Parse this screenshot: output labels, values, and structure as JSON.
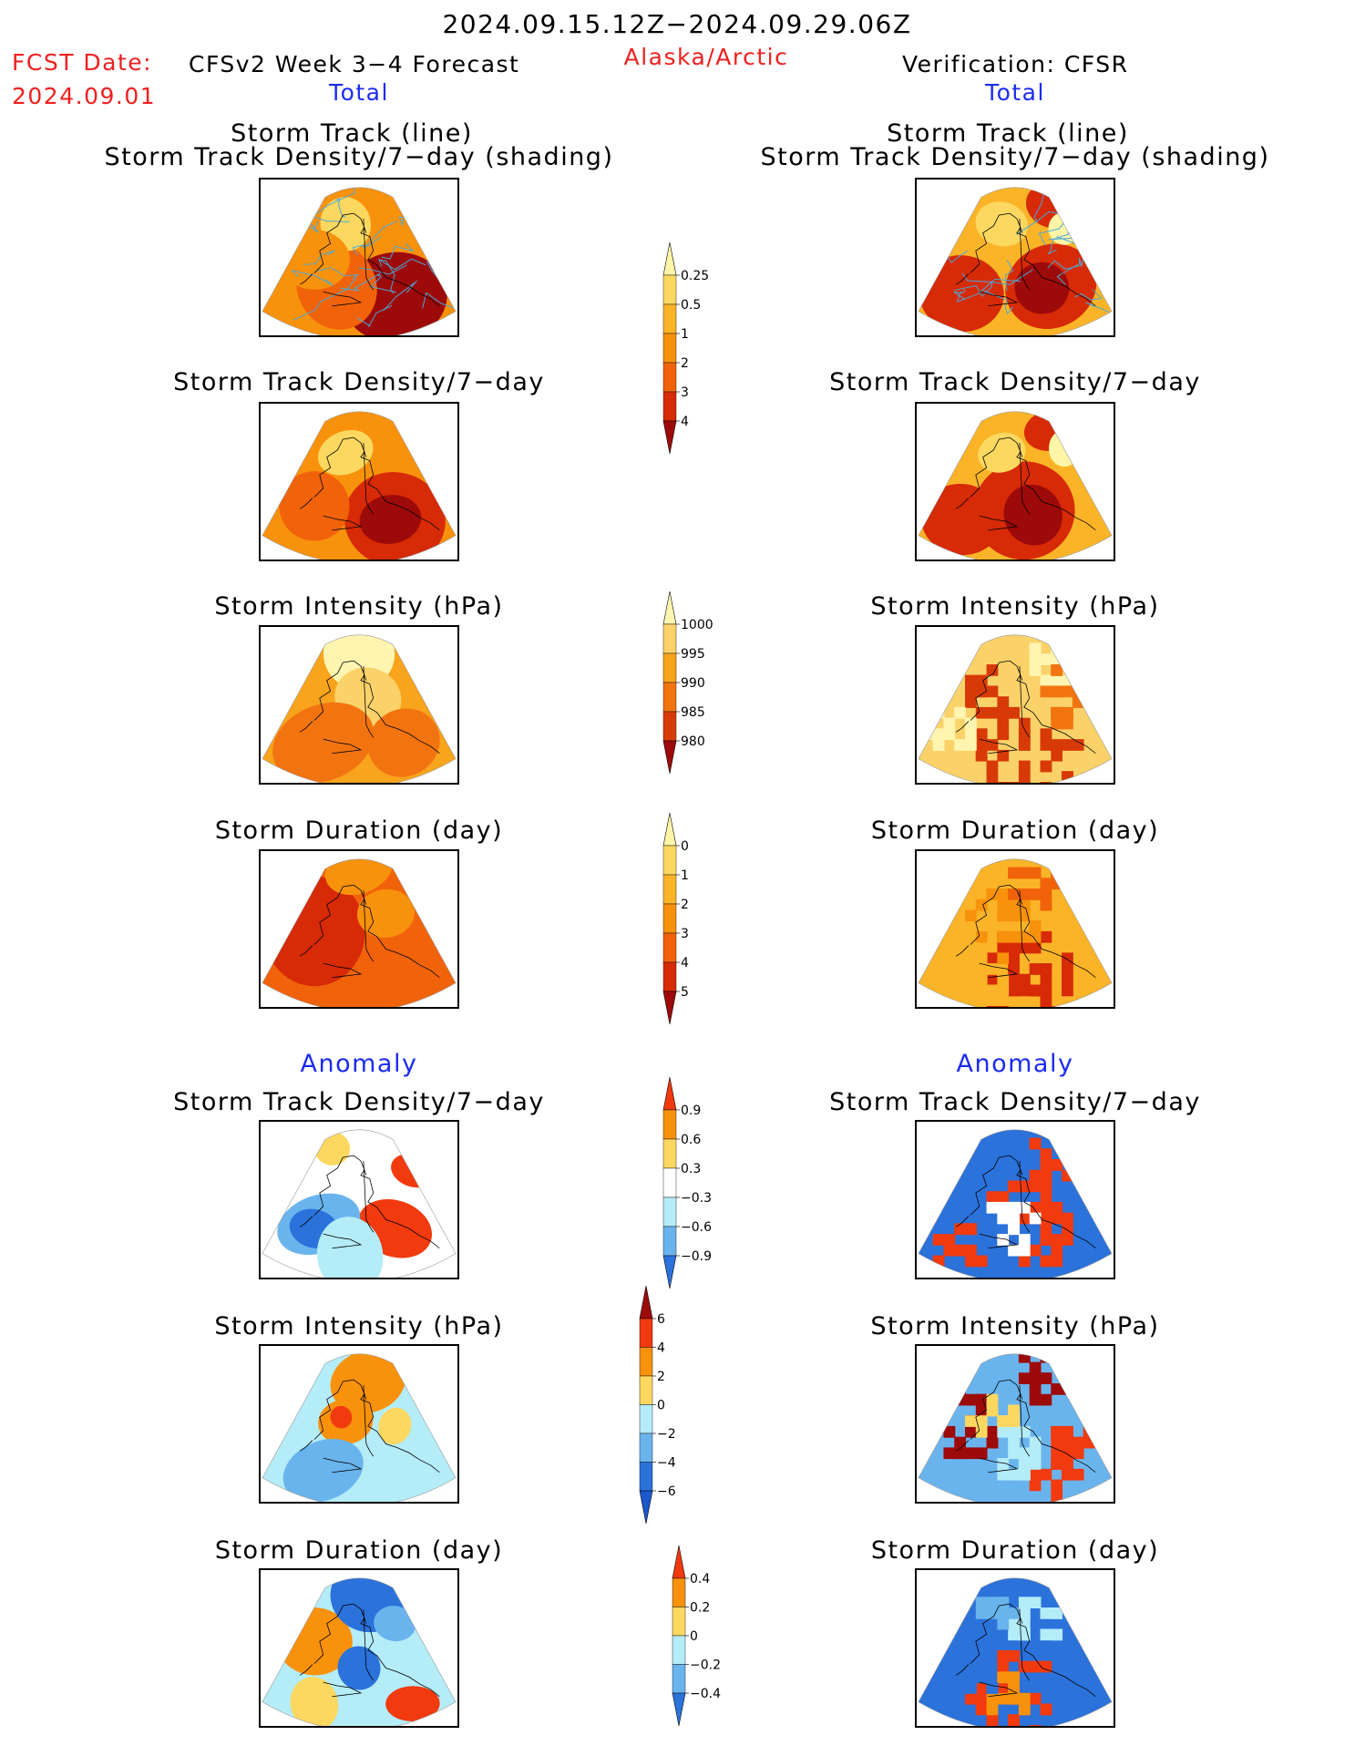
{
  "header": {
    "period": "2024.09.15.12Z−2024.09.29.06Z",
    "fcst_label": "FCST Date:",
    "fcst_date": "2024.09.01",
    "model": "CFSv2 Week 3−4 Forecast",
    "region": "Alaska/Arctic",
    "verification": "Verification: CFSR",
    "total_left": "Total",
    "total_right": "Total",
    "anomaly_left": "Anomaly",
    "anomaly_right": "Anomaly"
  },
  "titles": {
    "track_line": "Storm Track (line)",
    "track_shading": "Storm Track Density/7−day (shading)",
    "density": "Storm Track Density/7−day",
    "intensity": "Storm Intensity (hPa)",
    "duration": "Storm Duration (day)"
  },
  "chart_data": [
    {
      "type": "heatmap",
      "title": "Storm Track (line) / Storm Track Density/7−day (shading)",
      "source": "CFSv2 Week 3−4 Forecast",
      "field": "Total",
      "colorbar": "density",
      "dominant_range": [
        1,
        4
      ],
      "max_level": 4,
      "track_lines": true,
      "track_color": "#4aa8d8"
    },
    {
      "type": "heatmap",
      "title": "Storm Track (line) / Storm Track Density/7−day (shading)",
      "source": "CFSR",
      "field": "Total",
      "colorbar": "density",
      "dominant_range": [
        1,
        4
      ],
      "max_level": 4,
      "track_lines": true,
      "track_color": "#4aa8d8"
    },
    {
      "type": "heatmap",
      "title": "Storm Track Density/7−day",
      "source": "CFSv2 Week 3−4 Forecast",
      "field": "Total",
      "colorbar": "density",
      "dominant_range": [
        1,
        4
      ]
    },
    {
      "type": "heatmap",
      "title": "Storm Track Density/7−day",
      "source": "CFSR",
      "field": "Total",
      "colorbar": "density",
      "dominant_range": [
        1,
        4
      ]
    },
    {
      "type": "heatmap",
      "title": "Storm Intensity (hPa)",
      "source": "CFSv2 Week 3−4 Forecast",
      "field": "Total",
      "colorbar": "intensity",
      "dominant_range": [
        985,
        1000
      ]
    },
    {
      "type": "heatmap",
      "title": "Storm Intensity (hPa)",
      "source": "CFSR",
      "field": "Total",
      "colorbar": "intensity",
      "dominant_range": [
        980,
        1000
      ]
    },
    {
      "type": "heatmap",
      "title": "Storm Duration (day)",
      "source": "CFSv2 Week 3−4 Forecast",
      "field": "Total",
      "colorbar": "duration",
      "dominant_range": [
        2,
        5
      ]
    },
    {
      "type": "heatmap",
      "title": "Storm Duration (day)",
      "source": "CFSR",
      "field": "Total",
      "colorbar": "duration",
      "dominant_range": [
        1,
        5
      ]
    },
    {
      "type": "heatmap",
      "title": "Storm Track Density/7−day",
      "source": "CFSv2 Week 3−4 Forecast",
      "field": "Anomaly",
      "colorbar": "density_anom",
      "dominant_range": [
        -0.9,
        0.9
      ]
    },
    {
      "type": "heatmap",
      "title": "Storm Track Density/7−day",
      "source": "CFSR",
      "field": "Anomaly",
      "colorbar": "density_anom",
      "dominant_range": [
        -0.9,
        0.9
      ]
    },
    {
      "type": "heatmap",
      "title": "Storm Intensity (hPa)",
      "source": "CFSv2 Week 3−4 Forecast",
      "field": "Anomaly",
      "colorbar": "intensity_anom",
      "dominant_range": [
        -2,
        4
      ]
    },
    {
      "type": "heatmap",
      "title": "Storm Intensity (hPa)",
      "source": "CFSR",
      "field": "Anomaly",
      "colorbar": "intensity_anom",
      "dominant_range": [
        -6,
        6
      ]
    },
    {
      "type": "heatmap",
      "title": "Storm Duration (day)",
      "source": "CFSv2 Week 3−4 Forecast",
      "field": "Anomaly",
      "colorbar": "duration_anom",
      "dominant_range": [
        -0.4,
        0.4
      ]
    },
    {
      "type": "heatmap",
      "title": "Storm Duration (day)",
      "source": "CFSR",
      "field": "Anomaly",
      "colorbar": "duration_anom",
      "dominant_range": [
        -0.4,
        0.4
      ]
    }
  ],
  "colorbars": {
    "density": {
      "labels": [
        "0.25",
        "0.5",
        "1",
        "2",
        "3",
        "4"
      ],
      "colors": [
        "#fff5a8",
        "#fcd860",
        "#fbb427",
        "#f8920c",
        "#f1630a",
        "#d72a06",
        "#9d0a0a"
      ]
    },
    "intensity": {
      "labels": [
        "1000",
        "995",
        "990",
        "985",
        "980"
      ],
      "colors": [
        "#fff5b0",
        "#fbd26a",
        "#f8a41c",
        "#f27410",
        "#d83a07",
        "#9d0a0a"
      ]
    },
    "duration": {
      "labels": [
        "0",
        "1",
        "2",
        "3",
        "4",
        "5"
      ],
      "colors": [
        "#fff5a8",
        "#fcd860",
        "#fbb427",
        "#f8920c",
        "#f1630a",
        "#d72a06",
        "#9d0a0a"
      ]
    },
    "density_anom": {
      "labels": [
        "0.9",
        "0.6",
        "0.3",
        "−0.3",
        "−0.6",
        "−0.9"
      ],
      "colors": [
        "#f13a0e",
        "#f8920c",
        "#fcd860",
        "#ffffff",
        "#b4ecf8",
        "#6ab4ee",
        "#2b72db"
      ]
    },
    "intensity_anom": {
      "labels": [
        "6",
        "4",
        "2",
        "0",
        "−2",
        "−4",
        "−6"
      ],
      "colors": [
        "#9d0a0a",
        "#f13a0e",
        "#f8920c",
        "#fcd860",
        "#b4ecf8",
        "#6ab4ee",
        "#2b72db",
        "#1b58cf"
      ]
    },
    "duration_anom": {
      "labels": [
        "0.4",
        "0.2",
        "0",
        "−0.2",
        "−0.4"
      ],
      "colors": [
        "#f13a0e",
        "#f8920c",
        "#fcd860",
        "#b4ecf8",
        "#6ab4ee",
        "#2b72db"
      ]
    }
  }
}
